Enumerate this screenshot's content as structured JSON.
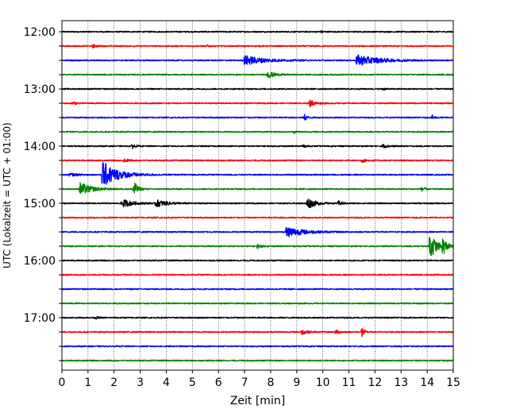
{
  "chart_data": {
    "type": "line",
    "subtype": "helicorder",
    "xlabel": "Zeit  [min]",
    "ylabel": "UTC (Lokalzeit = UTC + 01:00)",
    "xlim": [
      0,
      15
    ],
    "x_ticks": [
      0,
      1,
      2,
      3,
      4,
      5,
      6,
      7,
      8,
      9,
      10,
      11,
      12,
      13,
      14,
      15
    ],
    "x_grid": true,
    "hour_labels": [
      "12:00",
      "13:00",
      "14:00",
      "15:00",
      "16:00",
      "17:00"
    ],
    "trace_colors": [
      "#000000",
      "#ff0000",
      "#0000ff",
      "#008000"
    ],
    "traces": [
      {
        "start": "12:00",
        "color": "#000000",
        "events": [
          {
            "t": 9.9,
            "amp": 0.15,
            "dur": 0.2
          }
        ]
      },
      {
        "start": "12:15",
        "color": "#ff0000",
        "events": [
          {
            "t": 1.2,
            "amp": 0.25,
            "dur": 0.2
          },
          {
            "t": 5.6,
            "amp": 0.2,
            "dur": 0.1
          }
        ]
      },
      {
        "start": "12:30",
        "color": "#0000ff",
        "events": [
          {
            "t": 7.0,
            "amp": 0.7,
            "dur": 1.5
          },
          {
            "t": 11.3,
            "amp": 0.75,
            "dur": 1.8
          }
        ]
      },
      {
        "start": "12:45",
        "color": "#008000",
        "events": [
          {
            "t": 7.9,
            "amp": 0.5,
            "dur": 0.5
          }
        ]
      },
      {
        "start": "13:00",
        "color": "#000000",
        "events": [
          {
            "t": 12.3,
            "amp": 0.15,
            "dur": 0.2
          }
        ]
      },
      {
        "start": "13:15",
        "color": "#ff0000",
        "events": [
          {
            "t": 0.4,
            "amp": 0.2,
            "dur": 0.3
          },
          {
            "t": 9.5,
            "amp": 0.5,
            "dur": 0.4
          }
        ]
      },
      {
        "start": "13:30",
        "color": "#0000ff",
        "events": [
          {
            "t": 9.3,
            "amp": 0.45,
            "dur": 0.2
          },
          {
            "t": 14.2,
            "amp": 0.3,
            "dur": 0.2
          }
        ]
      },
      {
        "start": "13:45",
        "color": "#008000",
        "events": [
          {
            "t": 8.9,
            "amp": 0.15,
            "dur": 0.2
          }
        ]
      },
      {
        "start": "14:00",
        "color": "#000000",
        "events": [
          {
            "t": 2.7,
            "amp": 0.35,
            "dur": 0.2
          },
          {
            "t": 9.2,
            "amp": 0.25,
            "dur": 0.2
          },
          {
            "t": 12.3,
            "amp": 0.25,
            "dur": 0.4
          }
        ]
      },
      {
        "start": "14:15",
        "color": "#ff0000",
        "events": [
          {
            "t": 2.4,
            "amp": 0.25,
            "dur": 0.3
          },
          {
            "t": 11.5,
            "amp": 0.25,
            "dur": 0.4
          }
        ]
      },
      {
        "start": "14:30",
        "color": "#0000ff",
        "events": [
          {
            "t": 1.55,
            "amp": 1.9,
            "dur": 1.2
          },
          {
            "t": 0.3,
            "amp": 0.2,
            "dur": 0.6
          }
        ]
      },
      {
        "start": "14:45",
        "color": "#008000",
        "events": [
          {
            "t": 0.7,
            "amp": 0.9,
            "dur": 0.9
          },
          {
            "t": 2.75,
            "amp": 1.4,
            "dur": 0.25
          },
          {
            "t": 13.8,
            "amp": 0.6,
            "dur": 0.15
          }
        ]
      },
      {
        "start": "15:00",
        "color": "#000000",
        "events": [
          {
            "t": 2.3,
            "amp": 0.6,
            "dur": 0.8
          },
          {
            "t": 3.6,
            "amp": 0.5,
            "dur": 0.9
          },
          {
            "t": 9.4,
            "amp": 0.8,
            "dur": 0.6
          },
          {
            "t": 10.6,
            "amp": 0.3,
            "dur": 0.3
          }
        ]
      },
      {
        "start": "15:15",
        "color": "#ff0000",
        "events": []
      },
      {
        "start": "15:30",
        "color": "#0000ff",
        "events": [
          {
            "t": 8.6,
            "amp": 0.8,
            "dur": 1.3
          }
        ]
      },
      {
        "start": "15:45",
        "color": "#008000",
        "events": [
          {
            "t": 7.5,
            "amp": 0.3,
            "dur": 0.3
          },
          {
            "t": 14.1,
            "amp": 2.0,
            "dur": 0.5
          },
          {
            "t": 14.6,
            "amp": 1.2,
            "dur": 0.3
          }
        ]
      },
      {
        "start": "16:00",
        "color": "#000000",
        "events": []
      },
      {
        "start": "16:15",
        "color": "#ff0000",
        "events": []
      },
      {
        "start": "16:30",
        "color": "#0000ff",
        "events": []
      },
      {
        "start": "16:45",
        "color": "#008000",
        "events": []
      },
      {
        "start": "17:00",
        "color": "#000000",
        "events": [
          {
            "t": 1.3,
            "amp": 0.15,
            "dur": 0.2
          }
        ]
      },
      {
        "start": "17:15",
        "color": "#ff0000",
        "events": [
          {
            "t": 9.2,
            "amp": 0.35,
            "dur": 0.4
          },
          {
            "t": 10.5,
            "amp": 0.25,
            "dur": 0.4
          },
          {
            "t": 11.5,
            "amp": 0.9,
            "dur": 0.15
          }
        ]
      },
      {
        "start": "17:30",
        "color": "#0000ff",
        "events": []
      },
      {
        "start": "17:45",
        "color": "#008000",
        "events": []
      }
    ]
  }
}
